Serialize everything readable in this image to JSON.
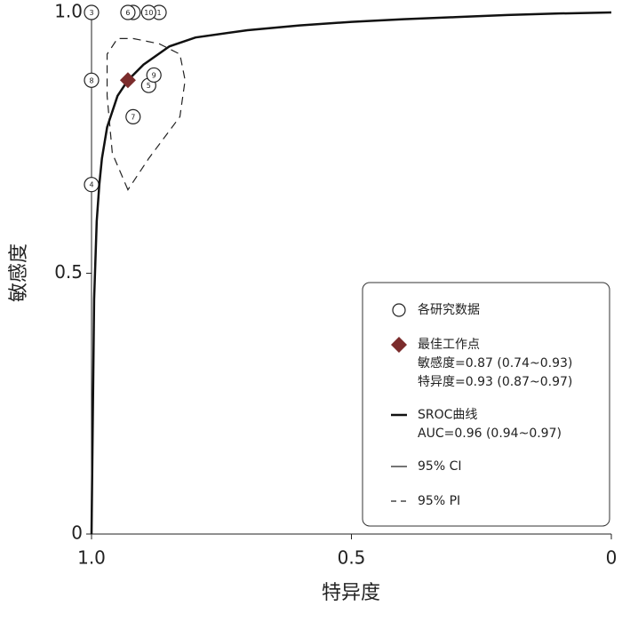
{
  "chart_data": {
    "type": "line",
    "x_label": "特异度",
    "y_label": "敏感度",
    "xlim": [
      1,
      0
    ],
    "ylim": [
      0,
      1
    ],
    "xticks": [
      {
        "value": 1,
        "label": "1.0"
      },
      0.5,
      0
    ],
    "yticks": [
      0,
      0.5,
      {
        "value": 1,
        "label": "1.0"
      }
    ],
    "series": [
      {
        "name": "各研究数据",
        "type": "scatter",
        "marker": "circle",
        "color": "#222",
        "labels": [
          "1",
          "2",
          "3",
          "4",
          "5",
          "6",
          "7",
          "8",
          "9",
          "10"
        ],
        "x": [
          0.87,
          0.92,
          1,
          1,
          0.89,
          0.93,
          0.92,
          1,
          0.88,
          0.89
        ],
        "values": [
          1,
          1,
          1,
          0.67,
          0.86,
          1,
          0.8,
          0.87,
          0.88,
          1
        ]
      },
      {
        "name": "最佳工作点",
        "type": "scatter",
        "marker": "diamond",
        "color": "#7b2c2c",
        "details": [
          "敏感度=0.87 (0.74~0.93)",
          "特异度=0.93 (0.87~0.97)"
        ],
        "x": [
          0.93
        ],
        "values": [
          0.87
        ]
      },
      {
        "name": "SROC曲线",
        "type": "line",
        "style": "thick",
        "color": "#111",
        "details": [
          "AUC=0.96 (0.94~0.97)"
        ],
        "x": [
          1,
          0.995,
          0.99,
          0.985,
          0.98,
          0.97,
          0.95,
          0.93,
          0.9,
          0.85,
          0.8,
          0.7,
          0.6,
          0.5,
          0.4,
          0.3,
          0.2,
          0.1,
          0
        ],
        "values": [
          0,
          0.45,
          0.6,
          0.67,
          0.72,
          0.78,
          0.84,
          0.87,
          0.9,
          0.935,
          0.952,
          0.966,
          0.975,
          0.982,
          0.987,
          0.991,
          0.995,
          0.998,
          1
        ]
      },
      {
        "name": "95% CI",
        "type": "region",
        "style": "solid",
        "color": "#222",
        "x": [],
        "values": []
      },
      {
        "name": "95% PI",
        "type": "region",
        "style": "dashed",
        "color": "#222",
        "x": [
          0.93,
          0.96,
          0.97,
          0.97,
          0.95,
          0.92,
          0.87,
          0.83,
          0.82,
          0.83,
          0.89
        ],
        "values": [
          0.66,
          0.73,
          0.84,
          0.92,
          0.95,
          0.95,
          0.94,
          0.92,
          0.87,
          0.8,
          0.72
        ]
      }
    ]
  }
}
